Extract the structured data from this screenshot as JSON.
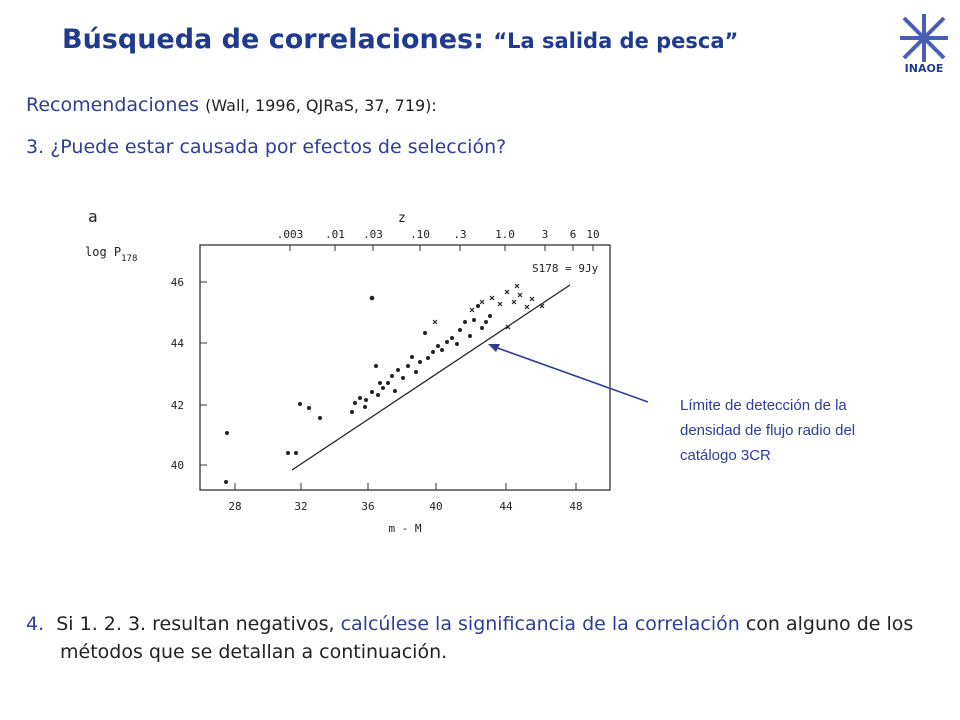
{
  "header": {
    "title": "Búsqueda de correlaciones:",
    "subtitle": "“La salida de pesca”",
    "logo": "INAOE"
  },
  "recommendations": {
    "lead": "Recomendaciones",
    "reference": "(Wall, 1996, QJRaS, 37, 719):"
  },
  "items": [
    {
      "number": "3.",
      "text": "¿Puede estar causada por efectos de selección?"
    },
    {
      "number": "4.",
      "parts": [
        "Si 1. 2. 3. resultan negativos, ",
        "calcúlese la significancia de la correlación",
        " con alguno de los métodos que se detallan a continuación."
      ]
    }
  ],
  "figure": {
    "panel": "a",
    "ylabel": "log P",
    "ylabel_sub": "178",
    "top_label": "z",
    "top_ticks": [
      ".003",
      ".01",
      ".03",
      ".10",
      ".3",
      "1.0",
      "3",
      "6",
      "10"
    ],
    "yticks": [
      "46",
      "44",
      "42",
      "40"
    ],
    "xticks": [
      "28",
      "32",
      "36",
      "40",
      "44",
      "48"
    ],
    "xlabel": "m - M",
    "line_label": "S178 = 9Jy"
  },
  "annotation": [
    "Límite de detección de la",
    "densidad de flujo radio del",
    "catálogo 3CR"
  ]
}
